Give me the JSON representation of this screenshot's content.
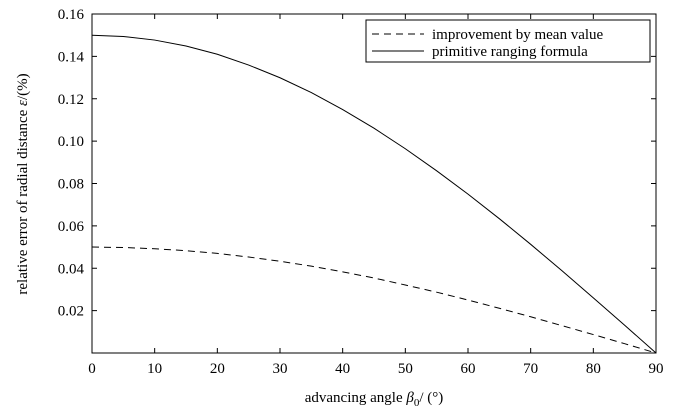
{
  "chart_data": {
    "type": "line",
    "title": "",
    "xlabel_prefix": "advancing angle ",
    "xlabel_symbol": "β",
    "xlabel_subscript": "0",
    "xlabel_suffix": "/ (°)",
    "ylabel_prefix": "relative error of radial distance ",
    "ylabel_symbol": "ε",
    "ylabel_suffix": "/(%)",
    "xlim": [
      0,
      90
    ],
    "ylim": [
      0,
      0.16
    ],
    "x_ticks": [
      0,
      10,
      20,
      30,
      40,
      50,
      60,
      70,
      80,
      90
    ],
    "x_tick_labels": [
      "0",
      "10",
      "20",
      "30",
      "40",
      "50",
      "60",
      "70",
      "80",
      "90"
    ],
    "y_ticks": [
      0.02,
      0.04,
      0.06,
      0.08,
      0.1,
      0.12,
      0.14,
      0.16
    ],
    "y_tick_labels": [
      "0.02",
      "0.04",
      "0.06",
      "0.08",
      "0.10",
      "0.12",
      "0.14",
      "0.16"
    ],
    "grid": false,
    "legend_position": "top-right",
    "series": [
      {
        "name": "improvement by mean value",
        "style": "dashed",
        "color": "#000000",
        "x": [
          0,
          5,
          10,
          15,
          20,
          25,
          30,
          35,
          40,
          45,
          50,
          55,
          60,
          65,
          70,
          75,
          80,
          85,
          90
        ],
        "y": [
          0.05,
          0.0498,
          0.0492,
          0.0483,
          0.047,
          0.0453,
          0.0433,
          0.041,
          0.0383,
          0.0354,
          0.0321,
          0.0287,
          0.025,
          0.0211,
          0.0171,
          0.0129,
          0.0087,
          0.0044,
          0.0
        ]
      },
      {
        "name": "primitive ranging formula",
        "style": "solid",
        "color": "#000000",
        "x": [
          0,
          5,
          10,
          15,
          20,
          25,
          30,
          35,
          40,
          45,
          50,
          55,
          60,
          65,
          70,
          75,
          80,
          85,
          90
        ],
        "y": [
          0.15,
          0.1494,
          0.1477,
          0.1449,
          0.141,
          0.1359,
          0.1299,
          0.1229,
          0.1149,
          0.1061,
          0.0964,
          0.086,
          0.075,
          0.0634,
          0.0513,
          0.0388,
          0.026,
          0.0131,
          0.0
        ]
      }
    ]
  }
}
